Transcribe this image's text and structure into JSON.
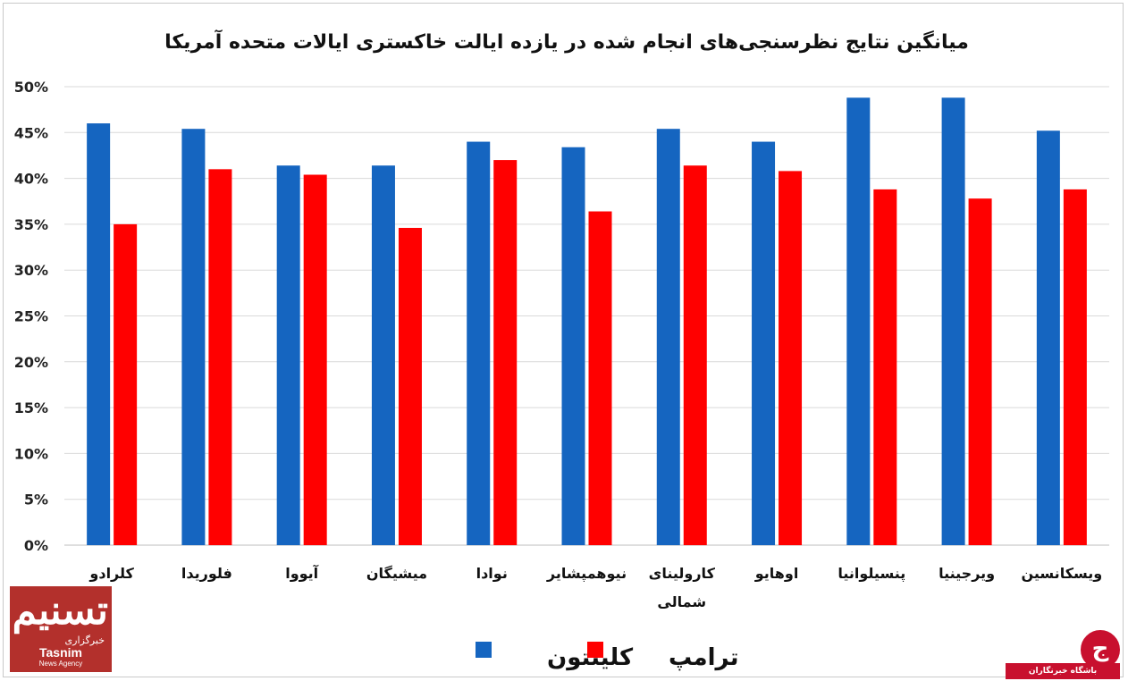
{
  "chart_data": {
    "type": "bar",
    "title": "میانگین نتایج نظرسنجی‌های انجام شده در یازده ایالت خاکستری ایالات متحده آمریکا",
    "categories": [
      "کلرادو",
      "فلوریدا",
      "آیووا",
      "میشیگان",
      "نوادا",
      "نیوهمپشایر",
      [
        "کارولینای",
        "شمالی"
      ],
      "اوهایو",
      "پنسیلوانیا",
      "ویرجینیا",
      "ویسکانسین"
    ],
    "series": [
      {
        "name": "کلینتون",
        "color": "#1565c0",
        "values": [
          46.0,
          45.4,
          41.4,
          41.4,
          44.0,
          43.4,
          45.4,
          44.0,
          48.8,
          48.8,
          45.2
        ]
      },
      {
        "name": "ترامپ",
        "color": "#ff0000",
        "values": [
          35.0,
          41.0,
          40.4,
          34.6,
          42.0,
          36.4,
          41.4,
          40.8,
          38.8,
          37.8,
          38.8
        ]
      }
    ],
    "ylim": [
      0,
      50
    ],
    "yticks": [
      "0%",
      "5%",
      "10%",
      "15%",
      "20%",
      "25%",
      "30%",
      "35%",
      "40%",
      "45%",
      "50%"
    ],
    "grid": true,
    "legend_placement": "bottom-center"
  },
  "logo": {
    "mark": "تسنیم",
    "tagline": "خبرگزاری",
    "name": "Tasnim",
    "sub": "News Agency"
  },
  "watermark": {
    "text": "باشگاه خبرنگاران",
    "glyph": "ج"
  }
}
